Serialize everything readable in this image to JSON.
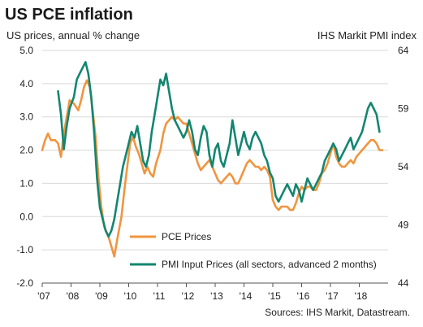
{
  "chart_data": {
    "type": "line",
    "title": "US PCE inflation",
    "left_axis_title": "US prices, annual % change",
    "right_axis_title": "IHS Markit PMI index",
    "source": "Sources: IHS Markit, Datastream.",
    "left_axis": {
      "min": -2.0,
      "max": 5.0,
      "ticks": [
        "-2.0",
        "-1.0",
        "0.0",
        "1.0",
        "2.0",
        "3.0",
        "4.0",
        "5.0"
      ],
      "tick_values": [
        -2,
        -1,
        0,
        1,
        2,
        3,
        4,
        5
      ]
    },
    "right_axis": {
      "min": 44,
      "max": 64,
      "ticks": [
        "44",
        "49",
        "54",
        "59",
        "64"
      ],
      "tick_values": [
        44,
        49,
        54,
        59,
        64
      ]
    },
    "x_axis": {
      "min": 2007.0,
      "max": 2019.0,
      "ticks": [
        "'07",
        "'08",
        "'09",
        "'10",
        "'11",
        "'12",
        "'13",
        "'14",
        "'15",
        "'16",
        "'17",
        "'18"
      ],
      "tick_values": [
        2007,
        2008,
        2009,
        2010,
        2011,
        2012,
        2013,
        2014,
        2015,
        2016,
        2017,
        2018
      ]
    },
    "gridlines": true,
    "legend_position": "bottom-center",
    "series": [
      {
        "name": "PCE Prices",
        "axis": "left",
        "color": "#f0953f",
        "points": [
          [
            2007.0,
            2.0
          ],
          [
            2007.1,
            2.3
          ],
          [
            2007.2,
            2.5
          ],
          [
            2007.3,
            2.3
          ],
          [
            2007.45,
            2.3
          ],
          [
            2007.55,
            2.2
          ],
          [
            2007.65,
            1.8
          ],
          [
            2007.75,
            2.5
          ],
          [
            2007.85,
            3.0
          ],
          [
            2007.95,
            3.5
          ],
          [
            2008.1,
            3.4
          ],
          [
            2008.25,
            3.2
          ],
          [
            2008.35,
            3.5
          ],
          [
            2008.45,
            3.9
          ],
          [
            2008.55,
            4.1
          ],
          [
            2008.65,
            3.9
          ],
          [
            2008.75,
            3.2
          ],
          [
            2008.85,
            2.4
          ],
          [
            2008.95,
            1.2
          ],
          [
            2009.05,
            0.3
          ],
          [
            2009.15,
            -0.3
          ],
          [
            2009.3,
            -0.6
          ],
          [
            2009.4,
            -0.9
          ],
          [
            2009.5,
            -1.2
          ],
          [
            2009.6,
            -0.7
          ],
          [
            2009.75,
            0.0
          ],
          [
            2009.85,
            0.8
          ],
          [
            2009.95,
            1.5
          ],
          [
            2010.05,
            2.2
          ],
          [
            2010.15,
            2.4
          ],
          [
            2010.25,
            2.1
          ],
          [
            2010.35,
            1.9
          ],
          [
            2010.45,
            1.6
          ],
          [
            2010.55,
            1.3
          ],
          [
            2010.65,
            1.5
          ],
          [
            2010.75,
            1.3
          ],
          [
            2010.85,
            1.2
          ],
          [
            2010.95,
            1.6
          ],
          [
            2011.1,
            2.0
          ],
          [
            2011.2,
            2.5
          ],
          [
            2011.3,
            2.8
          ],
          [
            2011.4,
            2.9
          ],
          [
            2011.5,
            3.0
          ],
          [
            2011.6,
            2.9
          ],
          [
            2011.7,
            3.0
          ],
          [
            2011.8,
            2.9
          ],
          [
            2011.9,
            2.8
          ],
          [
            2012.0,
            2.8
          ],
          [
            2012.1,
            2.5
          ],
          [
            2012.2,
            2.2
          ],
          [
            2012.3,
            1.9
          ],
          [
            2012.4,
            1.6
          ],
          [
            2012.5,
            1.4
          ],
          [
            2012.6,
            1.5
          ],
          [
            2012.7,
            1.6
          ],
          [
            2012.8,
            1.7
          ],
          [
            2012.9,
            1.5
          ],
          [
            2013.0,
            1.3
          ],
          [
            2013.1,
            1.1
          ],
          [
            2013.2,
            1.0
          ],
          [
            2013.3,
            1.1
          ],
          [
            2013.4,
            1.2
          ],
          [
            2013.5,
            1.3
          ],
          [
            2013.6,
            1.2
          ],
          [
            2013.7,
            1.0
          ],
          [
            2013.8,
            1.0
          ],
          [
            2013.9,
            1.2
          ],
          [
            2014.0,
            1.4
          ],
          [
            2014.1,
            1.6
          ],
          [
            2014.2,
            1.7
          ],
          [
            2014.3,
            1.6
          ],
          [
            2014.4,
            1.5
          ],
          [
            2014.5,
            1.5
          ],
          [
            2014.6,
            1.4
          ],
          [
            2014.7,
            1.5
          ],
          [
            2014.8,
            1.4
          ],
          [
            2014.9,
            1.2
          ],
          [
            2015.0,
            0.5
          ],
          [
            2015.1,
            0.3
          ],
          [
            2015.2,
            0.2
          ],
          [
            2015.3,
            0.3
          ],
          [
            2015.4,
            0.3
          ],
          [
            2015.5,
            0.3
          ],
          [
            2015.6,
            0.2
          ],
          [
            2015.7,
            0.2
          ],
          [
            2015.8,
            0.4
          ],
          [
            2015.9,
            0.7
          ],
          [
            2016.0,
            0.9
          ],
          [
            2016.1,
            0.8
          ],
          [
            2016.2,
            0.9
          ],
          [
            2016.3,
            0.9
          ],
          [
            2016.4,
            0.8
          ],
          [
            2016.5,
            0.8
          ],
          [
            2016.6,
            1.0
          ],
          [
            2016.7,
            1.3
          ],
          [
            2016.8,
            1.4
          ],
          [
            2016.9,
            1.6
          ],
          [
            2017.0,
            1.9
          ],
          [
            2017.1,
            2.2
          ],
          [
            2017.2,
            1.8
          ],
          [
            2017.3,
            1.6
          ],
          [
            2017.4,
            1.5
          ],
          [
            2017.5,
            1.5
          ],
          [
            2017.6,
            1.6
          ],
          [
            2017.7,
            1.7
          ],
          [
            2017.8,
            1.6
          ],
          [
            2017.9,
            1.8
          ],
          [
            2018.0,
            1.9
          ],
          [
            2018.1,
            2.0
          ],
          [
            2018.2,
            2.1
          ],
          [
            2018.3,
            2.2
          ],
          [
            2018.4,
            2.3
          ],
          [
            2018.5,
            2.3
          ],
          [
            2018.6,
            2.2
          ],
          [
            2018.7,
            2.0
          ],
          [
            2018.8,
            2.0
          ]
        ]
      },
      {
        "name": "PMI Input Prices (all sectors, advanced 2 months)",
        "axis": "right",
        "color": "#138670",
        "points": [
          [
            2007.55,
            60.5
          ],
          [
            2007.65,
            58.5
          ],
          [
            2007.75,
            55.5
          ],
          [
            2007.85,
            57.5
          ],
          [
            2007.95,
            59.0
          ],
          [
            2008.1,
            60.0
          ],
          [
            2008.2,
            61.5
          ],
          [
            2008.3,
            62.0
          ],
          [
            2008.4,
            62.5
          ],
          [
            2008.5,
            63.0
          ],
          [
            2008.6,
            62.0
          ],
          [
            2008.7,
            60.0
          ],
          [
            2008.8,
            57.0
          ],
          [
            2008.9,
            53.0
          ],
          [
            2009.0,
            50.5
          ],
          [
            2009.1,
            49.5
          ],
          [
            2009.2,
            48.5
          ],
          [
            2009.3,
            48.0
          ],
          [
            2009.4,
            48.5
          ],
          [
            2009.5,
            49.5
          ],
          [
            2009.6,
            51.0
          ],
          [
            2009.7,
            52.5
          ],
          [
            2009.8,
            54.0
          ],
          [
            2009.9,
            55.0
          ],
          [
            2010.0,
            56.0
          ],
          [
            2010.1,
            57.0
          ],
          [
            2010.2,
            56.5
          ],
          [
            2010.3,
            57.5
          ],
          [
            2010.4,
            56.0
          ],
          [
            2010.5,
            54.5
          ],
          [
            2010.6,
            54.0
          ],
          [
            2010.7,
            55.0
          ],
          [
            2010.8,
            57.0
          ],
          [
            2010.9,
            58.5
          ],
          [
            2011.0,
            60.0
          ],
          [
            2011.1,
            61.5
          ],
          [
            2011.2,
            61.0
          ],
          [
            2011.3,
            62.0
          ],
          [
            2011.4,
            60.5
          ],
          [
            2011.5,
            59.0
          ],
          [
            2011.6,
            58.0
          ],
          [
            2011.7,
            57.5
          ],
          [
            2011.8,
            57.0
          ],
          [
            2011.9,
            56.5
          ],
          [
            2012.0,
            57.0
          ],
          [
            2012.1,
            58.0
          ],
          [
            2012.2,
            57.0
          ],
          [
            2012.3,
            55.5
          ],
          [
            2012.4,
            55.0
          ],
          [
            2012.5,
            56.5
          ],
          [
            2012.6,
            57.5
          ],
          [
            2012.7,
            57.0
          ],
          [
            2012.8,
            55.0
          ],
          [
            2012.9,
            54.0
          ],
          [
            2013.0,
            55.5
          ],
          [
            2013.1,
            56.0
          ],
          [
            2013.2,
            54.5
          ],
          [
            2013.3,
            54.0
          ],
          [
            2013.4,
            55.0
          ],
          [
            2013.5,
            56.0
          ],
          [
            2013.6,
            58.0
          ],
          [
            2013.7,
            56.5
          ],
          [
            2013.8,
            55.0
          ],
          [
            2013.9,
            56.0
          ],
          [
            2014.0,
            57.0
          ],
          [
            2014.1,
            56.0
          ],
          [
            2014.2,
            55.5
          ],
          [
            2014.3,
            56.5
          ],
          [
            2014.4,
            57.0
          ],
          [
            2014.5,
            56.5
          ],
          [
            2014.6,
            56.0
          ],
          [
            2014.7,
            55.0
          ],
          [
            2014.8,
            54.5
          ],
          [
            2014.9,
            53.5
          ],
          [
            2015.0,
            53.0
          ],
          [
            2015.1,
            51.5
          ],
          [
            2015.2,
            51.0
          ],
          [
            2015.3,
            51.5
          ],
          [
            2015.4,
            52.0
          ],
          [
            2015.5,
            52.5
          ],
          [
            2015.6,
            52.0
          ],
          [
            2015.7,
            51.5
          ],
          [
            2015.8,
            52.5
          ],
          [
            2015.9,
            52.0
          ],
          [
            2016.0,
            51.0
          ],
          [
            2016.1,
            52.0
          ],
          [
            2016.2,
            53.0
          ],
          [
            2016.3,
            52.5
          ],
          [
            2016.4,
            52.0
          ],
          [
            2016.5,
            52.5
          ],
          [
            2016.6,
            53.0
          ],
          [
            2016.7,
            53.5
          ],
          [
            2016.8,
            54.5
          ],
          [
            2016.9,
            55.0
          ],
          [
            2017.0,
            55.5
          ],
          [
            2017.1,
            56.0
          ],
          [
            2017.2,
            55.5
          ],
          [
            2017.3,
            54.5
          ],
          [
            2017.4,
            55.0
          ],
          [
            2017.5,
            55.5
          ],
          [
            2017.6,
            56.0
          ],
          [
            2017.7,
            56.5
          ],
          [
            2017.8,
            55.5
          ],
          [
            2017.9,
            56.0
          ],
          [
            2018.0,
            56.5
          ],
          [
            2018.1,
            57.0
          ],
          [
            2018.2,
            58.0
          ],
          [
            2018.3,
            59.0
          ],
          [
            2018.4,
            59.5
          ],
          [
            2018.5,
            59.0
          ],
          [
            2018.6,
            58.5
          ],
          [
            2018.7,
            57.0
          ]
        ]
      }
    ]
  }
}
